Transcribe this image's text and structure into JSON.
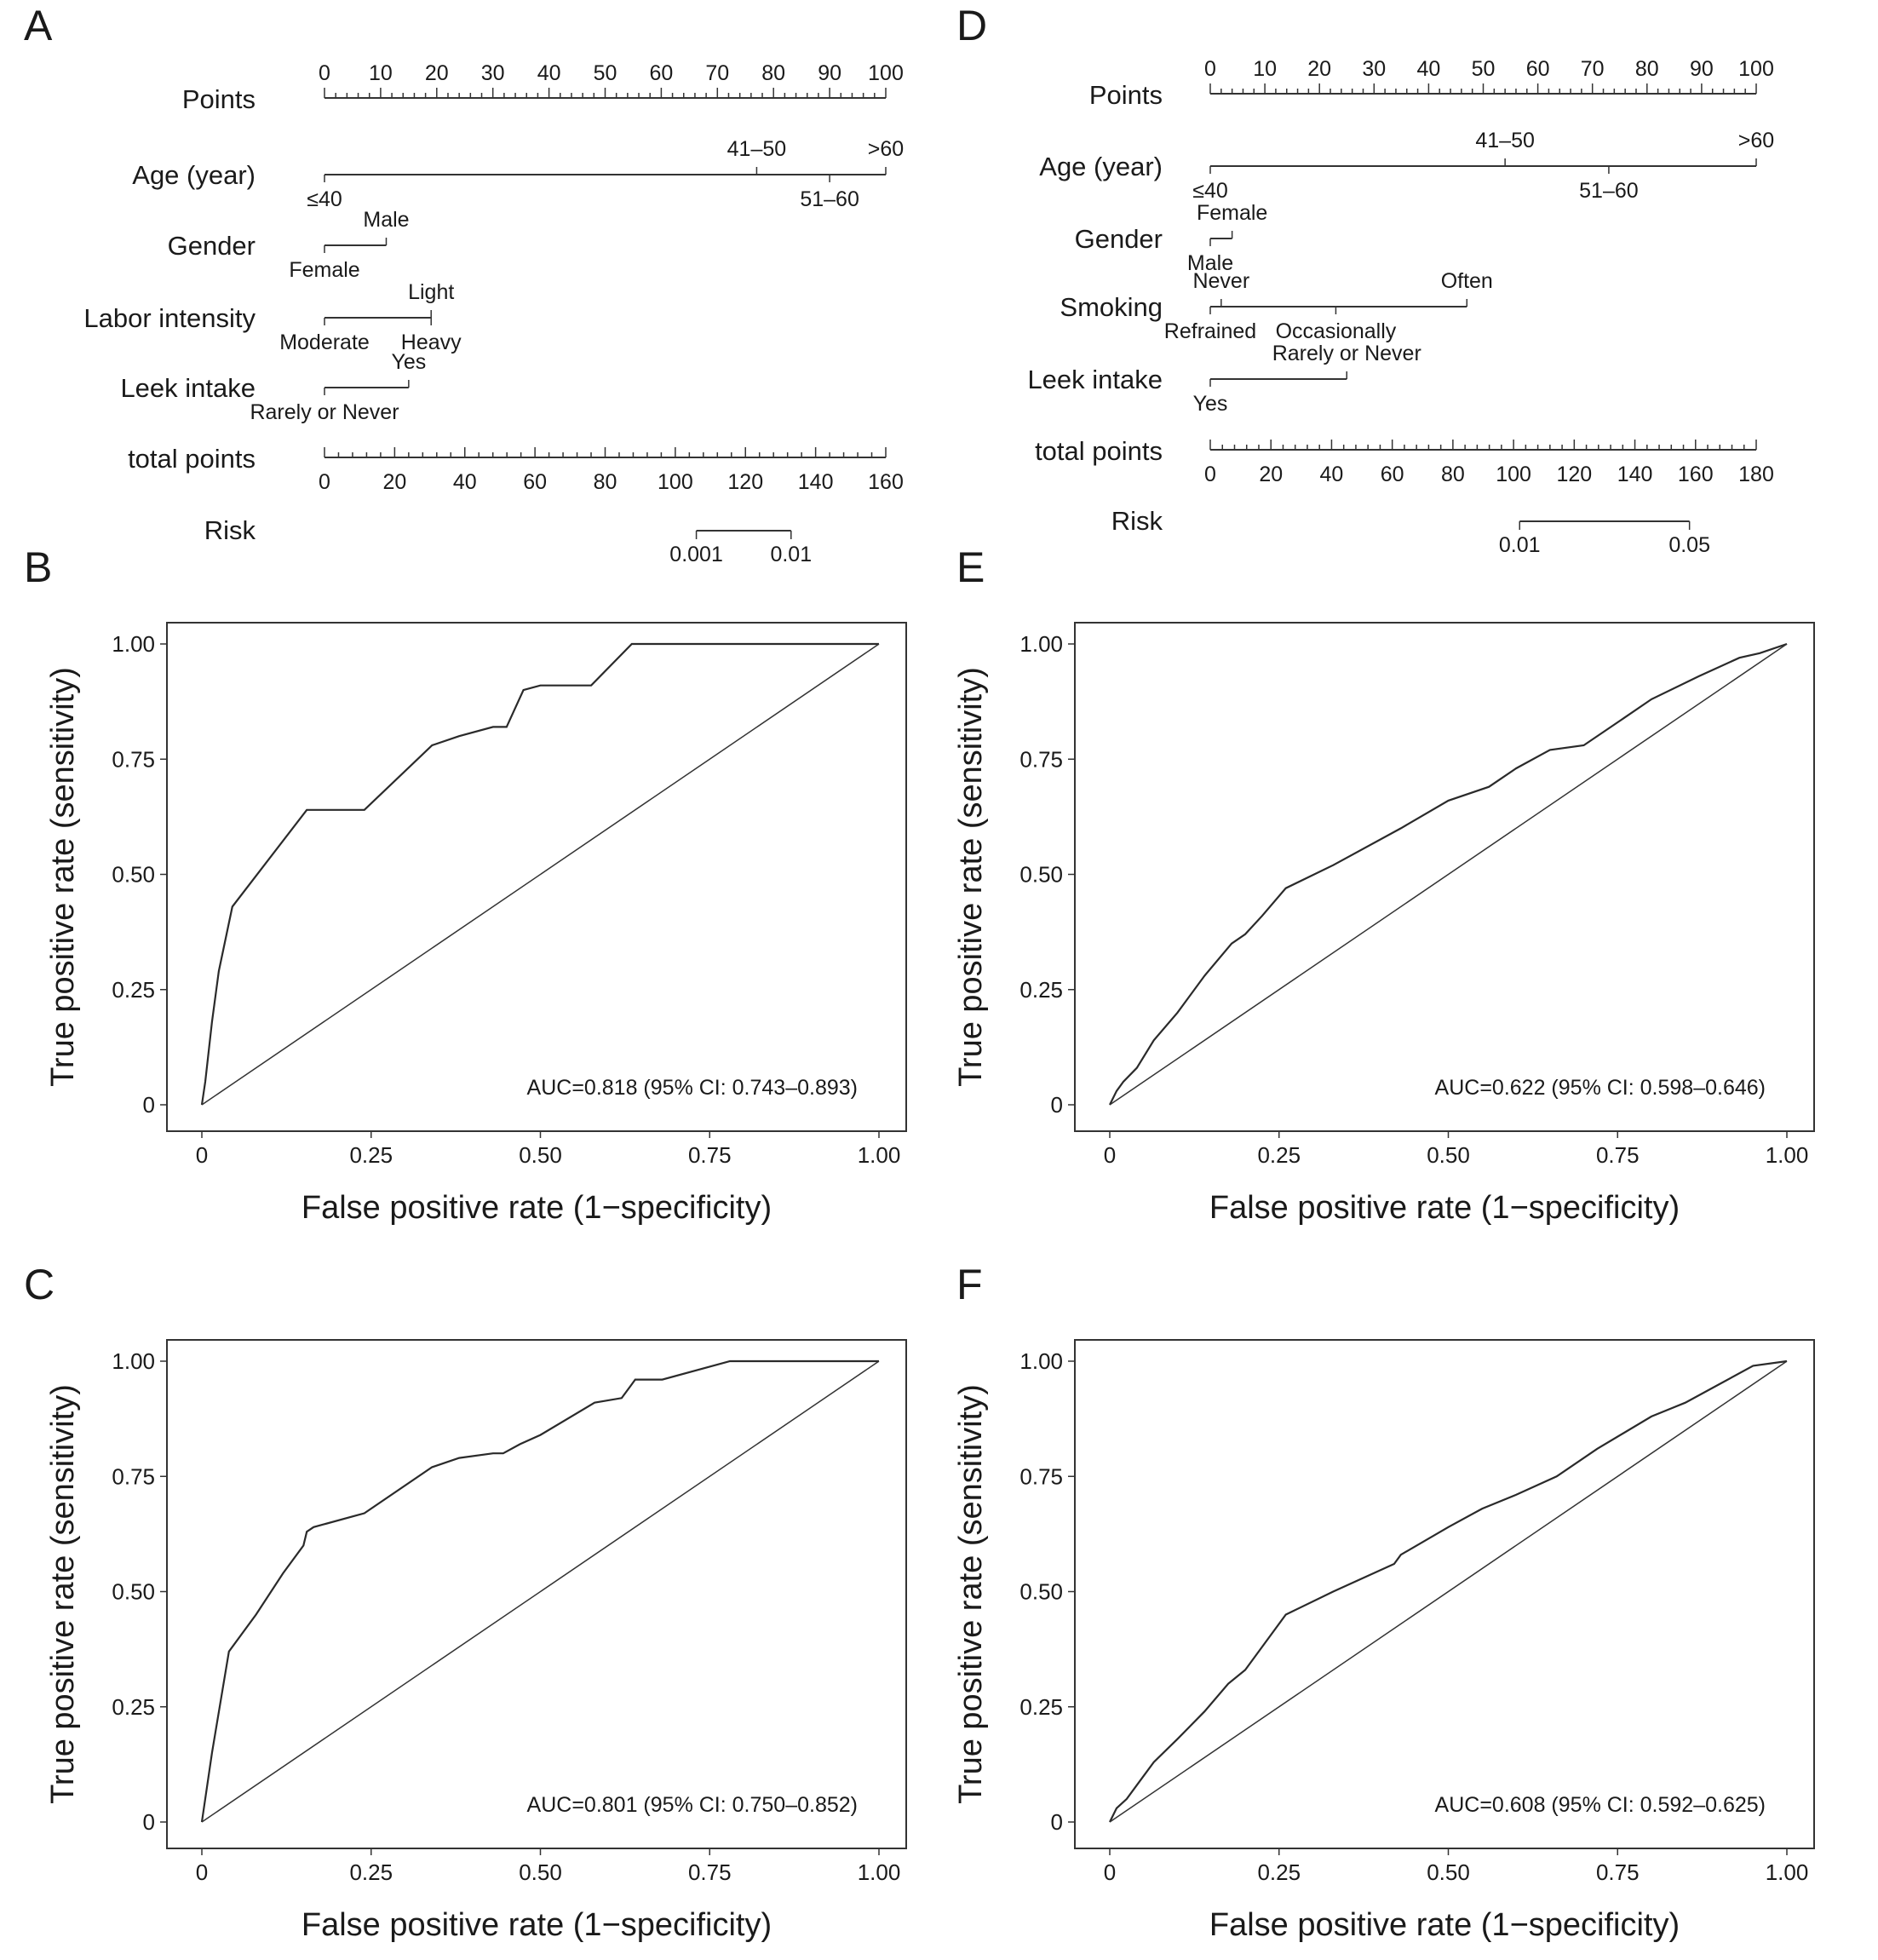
{
  "figure": {
    "nomograms": [
      {
        "panel": "A",
        "points_axis": {
          "label": "Points",
          "ticks": [
            "0",
            "10",
            "20",
            "30",
            "40",
            "50",
            "60",
            "70",
            "80",
            "90",
            "100"
          ]
        },
        "variables": [
          {
            "name": "Age (year)",
            "type": "scale",
            "start": 0,
            "end": 100,
            "labels": [
              {
                "text": "≤40",
                "at": 0,
                "side": "below"
              },
              {
                "text": "41–50",
                "at": 77,
                "side": "above"
              },
              {
                "text": "51–60",
                "at": 90,
                "side": "below"
              },
              {
                "text": ">60",
                "at": 100,
                "side": "above"
              }
            ]
          },
          {
            "name": "Gender",
            "type": "scale",
            "start": 0,
            "end": 11,
            "labels": [
              {
                "text": "Female",
                "at": 0,
                "side": "below"
              },
              {
                "text": "Male",
                "at": 11,
                "side": "above"
              }
            ]
          },
          {
            "name": "Labor intensity",
            "type": "scale",
            "start": 0,
            "end": 19,
            "labels": [
              {
                "text": "Moderate",
                "at": 0,
                "side": "below"
              },
              {
                "text": "Light",
                "at": 19,
                "side": "above"
              },
              {
                "text": "Heavy",
                "at": 19,
                "side": "below"
              }
            ]
          },
          {
            "name": "Leek intake",
            "type": "scale",
            "start": 0,
            "end": 15,
            "labels": [
              {
                "text": "Rarely or Never",
                "at": 0,
                "side": "below"
              },
              {
                "text": "Yes",
                "at": 15,
                "side": "above"
              }
            ]
          }
        ],
        "total_points": {
          "label": "total points",
          "ticks": [
            "0",
            "20",
            "40",
            "60",
            "80",
            "100",
            "120",
            "140",
            "160"
          ]
        },
        "risk": {
          "label": "Risk",
          "marks": [
            {
              "text": "0.001",
              "at": 106
            },
            {
              "text": "0.01",
              "at": 133
            }
          ]
        }
      },
      {
        "panel": "D",
        "points_axis": {
          "label": "Points",
          "ticks": [
            "0",
            "10",
            "20",
            "30",
            "40",
            "50",
            "60",
            "70",
            "80",
            "90",
            "100"
          ]
        },
        "variables": [
          {
            "name": "Age (year)",
            "type": "scale",
            "start": 0,
            "end": 100,
            "labels": [
              {
                "text": "≤40",
                "at": 0,
                "side": "below"
              },
              {
                "text": "41–50",
                "at": 54,
                "side": "above"
              },
              {
                "text": "51–60",
                "at": 73,
                "side": "below"
              },
              {
                "text": ">60",
                "at": 100,
                "side": "above"
              }
            ]
          },
          {
            "name": "Gender",
            "type": "scale",
            "start": 0,
            "end": 4,
            "labels": [
              {
                "text": "Female",
                "at": 4,
                "side": "above"
              },
              {
                "text": "Male",
                "at": 0,
                "side": "below"
              }
            ]
          },
          {
            "name": "Smoking",
            "type": "scale",
            "start": 0,
            "end": 47,
            "labels": [
              {
                "text": "Never",
                "at": 2,
                "side": "above"
              },
              {
                "text": "Often",
                "at": 47,
                "side": "above"
              },
              {
                "text": "Refrained",
                "at": 0,
                "side": "below"
              },
              {
                "text": "Occasionally",
                "at": 23,
                "side": "below"
              }
            ]
          },
          {
            "name": "Leek intake",
            "type": "scale",
            "start": 0,
            "end": 25,
            "labels": [
              {
                "text": "Yes",
                "at": 0,
                "side": "below"
              },
              {
                "text": "Rarely  or  Never",
                "at": 25,
                "side": "above"
              }
            ]
          }
        ],
        "total_points": {
          "label": "total points",
          "ticks": [
            "0",
            "20",
            "40",
            "60",
            "80",
            "100",
            "120",
            "140",
            "160",
            "180"
          ]
        },
        "risk": {
          "label": "Risk",
          "marks": [
            {
              "text": "0.01",
              "at": 102
            },
            {
              "text": "0.05",
              "at": 158
            }
          ]
        }
      }
    ]
  },
  "chart_data": [
    {
      "panel": "B",
      "type": "line",
      "xlabel": "False positive rate (1−specificity)",
      "ylabel": "True positive rate (sensitivity)",
      "xlim": [
        0,
        1
      ],
      "ylim": [
        0,
        1
      ],
      "xticks": [
        "0",
        "0.25",
        "0.50",
        "0.75",
        "1.00"
      ],
      "yticks": [
        "0",
        "0.25",
        "0.50",
        "0.75",
        "1.00"
      ],
      "annotation": "AUC=0.818 (95% CI: 0.743–0.893)",
      "series": [
        {
          "x": [
            0,
            0.005,
            0.015,
            0.025,
            0.045,
            0.155,
            0.24,
            0.34,
            0.38,
            0.43,
            0.45,
            0.475,
            0.5,
            0.575,
            0.635,
            1.0
          ],
          "y": [
            0,
            0.05,
            0.18,
            0.29,
            0.43,
            0.64,
            0.64,
            0.78,
            0.8,
            0.82,
            0.82,
            0.9,
            0.91,
            0.91,
            1.0,
            1.0
          ]
        },
        {
          "x": [
            0,
            1
          ],
          "y": [
            0,
            1
          ]
        }
      ]
    },
    {
      "panel": "C",
      "type": "line",
      "xlabel": "False positive rate (1−specificity)",
      "ylabel": "True positive rate (sensitivity)",
      "xlim": [
        0,
        1
      ],
      "ylim": [
        0,
        1
      ],
      "xticks": [
        "0",
        "0.25",
        "0.50",
        "0.75",
        "1.00"
      ],
      "yticks": [
        "0",
        "0.25",
        "0.50",
        "0.75",
        "1.00"
      ],
      "annotation": "AUC=0.801 (95% CI: 0.750–0.852)",
      "series": [
        {
          "x": [
            0,
            0.015,
            0.04,
            0.08,
            0.12,
            0.15,
            0.155,
            0.165,
            0.24,
            0.34,
            0.38,
            0.43,
            0.445,
            0.47,
            0.5,
            0.58,
            0.62,
            0.635,
            0.64,
            0.68,
            0.78,
            1.0
          ],
          "y": [
            0,
            0.15,
            0.37,
            0.45,
            0.54,
            0.6,
            0.63,
            0.64,
            0.67,
            0.77,
            0.79,
            0.8,
            0.8,
            0.82,
            0.84,
            0.91,
            0.92,
            0.95,
            0.96,
            0.96,
            1.0,
            1.0
          ]
        },
        {
          "x": [
            0,
            1
          ],
          "y": [
            0,
            1
          ]
        }
      ]
    },
    {
      "panel": "E",
      "type": "line",
      "xlabel": "False positive rate (1−specificity)",
      "ylabel": "True positive rate (sensitivity)",
      "xlim": [
        0,
        1
      ],
      "ylim": [
        0,
        1
      ],
      "xticks": [
        "0",
        "0.25",
        "0.50",
        "0.75",
        "1.00"
      ],
      "yticks": [
        "0",
        "0.25",
        "0.50",
        "0.75",
        "1.00"
      ],
      "annotation": "AUC=0.622 (95% CI: 0.598–0.646)",
      "series": [
        {
          "x": [
            0,
            0.01,
            0.02,
            0.04,
            0.065,
            0.1,
            0.14,
            0.18,
            0.2,
            0.225,
            0.26,
            0.33,
            0.43,
            0.5,
            0.56,
            0.6,
            0.65,
            0.7,
            0.75,
            0.8,
            0.87,
            0.93,
            0.96,
            1.0
          ],
          "y": [
            0,
            0.03,
            0.05,
            0.08,
            0.14,
            0.2,
            0.28,
            0.35,
            0.37,
            0.41,
            0.47,
            0.52,
            0.6,
            0.66,
            0.69,
            0.73,
            0.77,
            0.78,
            0.83,
            0.88,
            0.93,
            0.97,
            0.98,
            1.0
          ]
        },
        {
          "x": [
            0,
            1
          ],
          "y": [
            0,
            1
          ]
        }
      ]
    },
    {
      "panel": "F",
      "type": "line",
      "xlabel": "False positive rate (1−specificity)",
      "ylabel": "True positive rate (sensitivity)",
      "xlim": [
        0,
        1
      ],
      "ylim": [
        0,
        1
      ],
      "xticks": [
        "0",
        "0.25",
        "0.50",
        "0.75",
        "1.00"
      ],
      "yticks": [
        "0",
        "0.25",
        "0.50",
        "0.75",
        "1.00"
      ],
      "annotation": "AUC=0.608 (95% CI: 0.592–0.625)",
      "series": [
        {
          "x": [
            0,
            0.01,
            0.025,
            0.04,
            0.065,
            0.1,
            0.14,
            0.175,
            0.2,
            0.225,
            0.26,
            0.33,
            0.42,
            0.43,
            0.5,
            0.55,
            0.6,
            0.66,
            0.72,
            0.8,
            0.85,
            0.9,
            0.95,
            1.0
          ],
          "y": [
            0,
            0.03,
            0.05,
            0.08,
            0.13,
            0.18,
            0.24,
            0.3,
            0.33,
            0.38,
            0.45,
            0.5,
            0.56,
            0.58,
            0.64,
            0.68,
            0.71,
            0.75,
            0.81,
            0.88,
            0.91,
            0.95,
            0.99,
            1.0
          ]
        },
        {
          "x": [
            0,
            1
          ],
          "y": [
            0,
            1
          ]
        }
      ]
    }
  ]
}
